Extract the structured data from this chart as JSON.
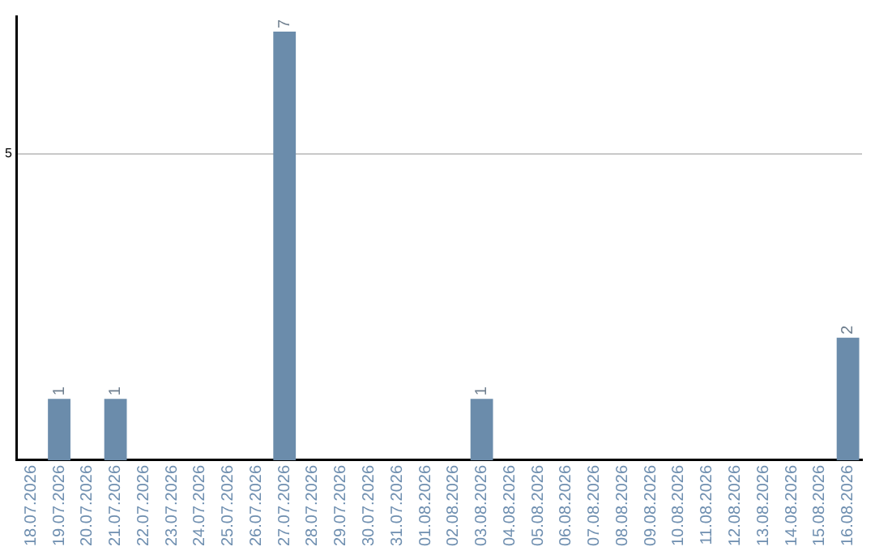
{
  "chart_data": {
    "type": "bar",
    "categories": [
      "18.07.2026",
      "19.07.2026",
      "20.07.2026",
      "21.07.2026",
      "22.07.2026",
      "23.07.2026",
      "24.07.2026",
      "25.07.2026",
      "26.07.2026",
      "27.07.2026",
      "28.07.2026",
      "29.07.2026",
      "30.07.2026",
      "31.07.2026",
      "01.08.2026",
      "02.08.2026",
      "03.08.2026",
      "04.08.2026",
      "05.08.2026",
      "06.08.2026",
      "07.08.2026",
      "08.08.2026",
      "09.08.2026",
      "10.08.2026",
      "11.08.2026",
      "12.08.2026",
      "13.08.2026",
      "14.08.2026",
      "15.08.2026",
      "16.08.2026"
    ],
    "values": [
      0,
      1,
      0,
      1,
      0,
      0,
      0,
      0,
      0,
      7,
      0,
      0,
      0,
      0,
      0,
      0,
      1,
      0,
      0,
      0,
      0,
      0,
      0,
      0,
      0,
      0,
      0,
      0,
      0,
      2
    ],
    "value_labels": [
      null,
      "1",
      null,
      "1",
      null,
      null,
      null,
      null,
      null,
      "7",
      null,
      null,
      null,
      null,
      null,
      null,
      "1",
      null,
      null,
      null,
      null,
      null,
      null,
      null,
      null,
      null,
      null,
      null,
      null,
      "2"
    ],
    "color": "#6b8cab",
    "ylim": [
      0,
      7.25
    ],
    "yticks": [
      5
    ],
    "grid": "y",
    "legend": false
  }
}
